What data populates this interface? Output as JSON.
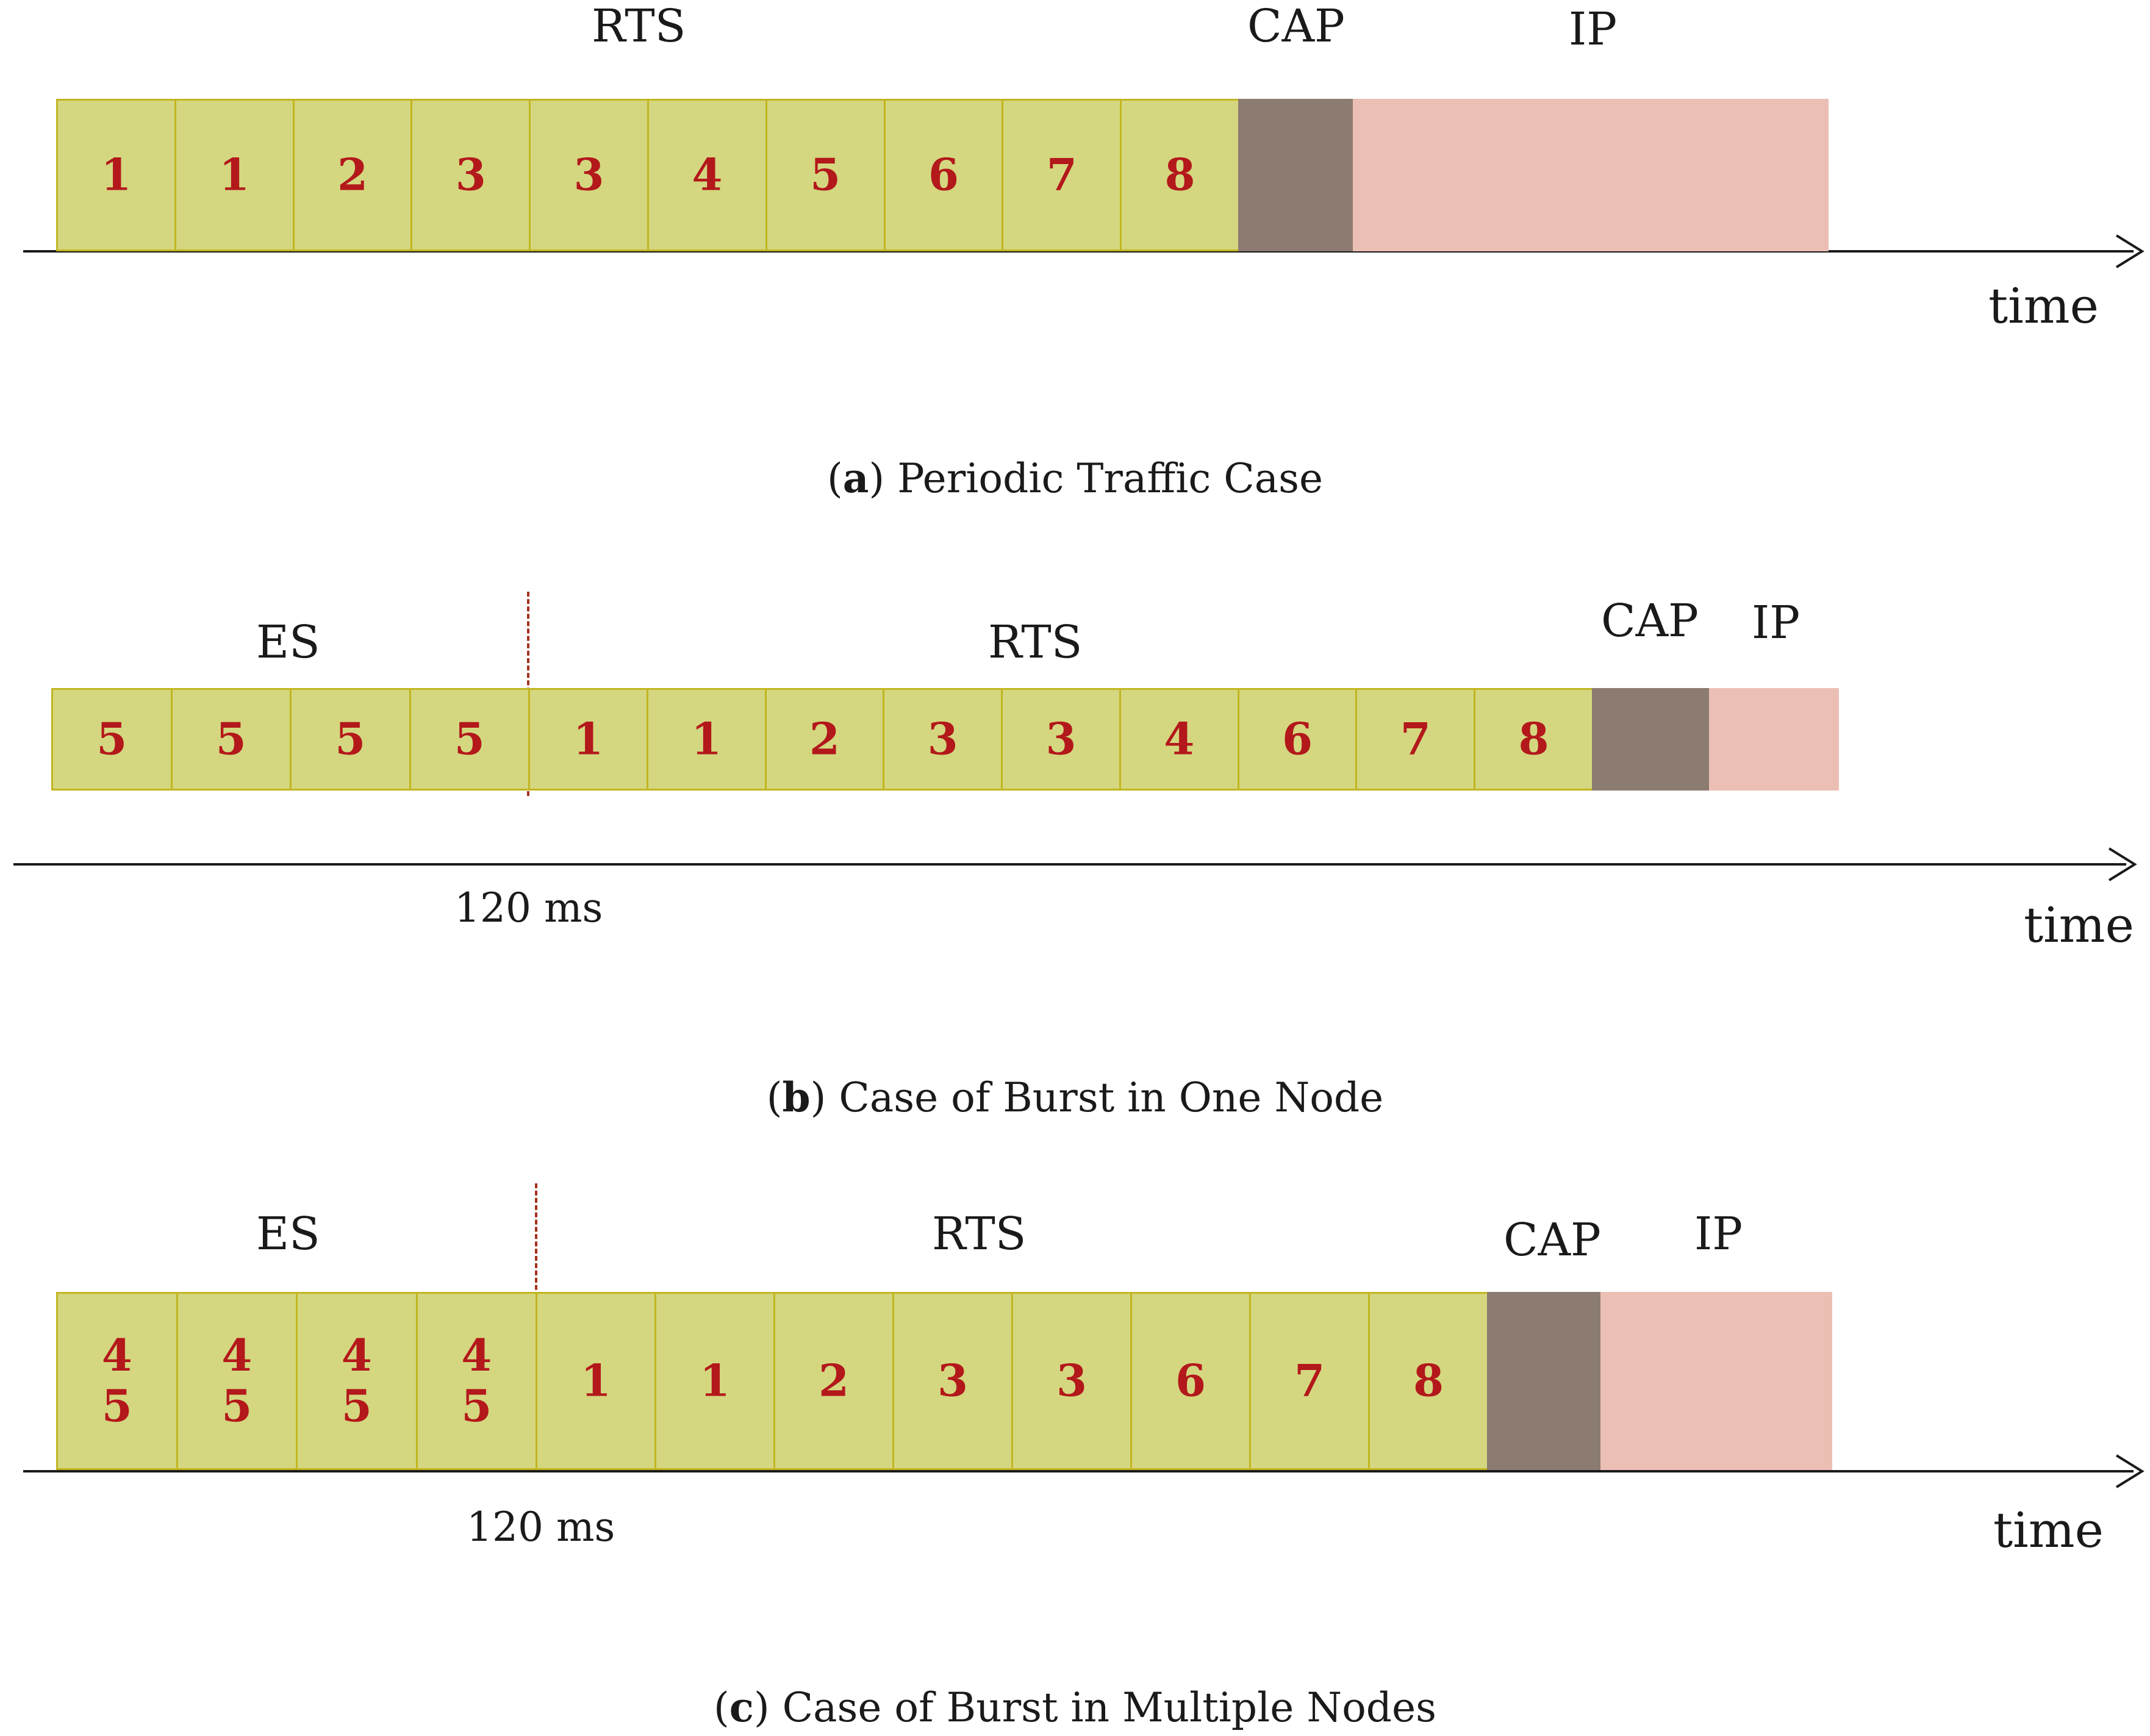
{
  "panels": [
    {
      "id": "a",
      "caption_letter": "a",
      "caption_text": "Periodic Traffic Case",
      "axis_label": "time",
      "es_label": "",
      "rts_label": "RTS",
      "cap_label": "CAP",
      "ip_label": "IP",
      "ms_label": "",
      "es_slots": [],
      "rts_slots": [
        [
          "1"
        ],
        [
          "1"
        ],
        [
          "2"
        ],
        [
          "3"
        ],
        [
          "3"
        ],
        [
          "4"
        ],
        [
          "5"
        ],
        [
          "6"
        ],
        [
          "7"
        ],
        [
          "8"
        ]
      ]
    },
    {
      "id": "b",
      "caption_letter": "b",
      "caption_text": "Case of Burst in One Node",
      "axis_label": "time",
      "es_label": "ES",
      "rts_label": "RTS",
      "cap_label": "CAP",
      "ip_label": "IP",
      "ms_label": "120 ms",
      "es_slots": [
        [
          "5"
        ],
        [
          "5"
        ],
        [
          "5"
        ],
        [
          "5"
        ]
      ],
      "rts_slots": [
        [
          "1"
        ],
        [
          "1"
        ],
        [
          "2"
        ],
        [
          "3"
        ],
        [
          "3"
        ],
        [
          "4"
        ],
        [
          "6"
        ],
        [
          "7"
        ],
        [
          "8"
        ]
      ]
    },
    {
      "id": "c",
      "caption_letter": "c",
      "caption_text": "Case of Burst in Multiple Nodes",
      "axis_label": "time",
      "es_label": "ES",
      "rts_label": "RTS",
      "cap_label": "CAP",
      "ip_label": "IP",
      "ms_label": "120 ms",
      "es_slots": [
        [
          "4",
          "5"
        ],
        [
          "4",
          "5"
        ],
        [
          "4",
          "5"
        ],
        [
          "4",
          "5"
        ]
      ],
      "rts_slots": [
        [
          "1"
        ],
        [
          "1"
        ],
        [
          "2"
        ],
        [
          "3"
        ],
        [
          "3"
        ],
        [
          "6"
        ],
        [
          "7"
        ],
        [
          "8"
        ]
      ]
    }
  ],
  "colors": {
    "slot_fill": "#d4d77f",
    "slot_border": "#c2b51f",
    "slot_number": "#b3181b",
    "cap_fill": "#8c7b71",
    "ip_fill": "#ecbfb4",
    "marker_line": "#a4301f"
  }
}
